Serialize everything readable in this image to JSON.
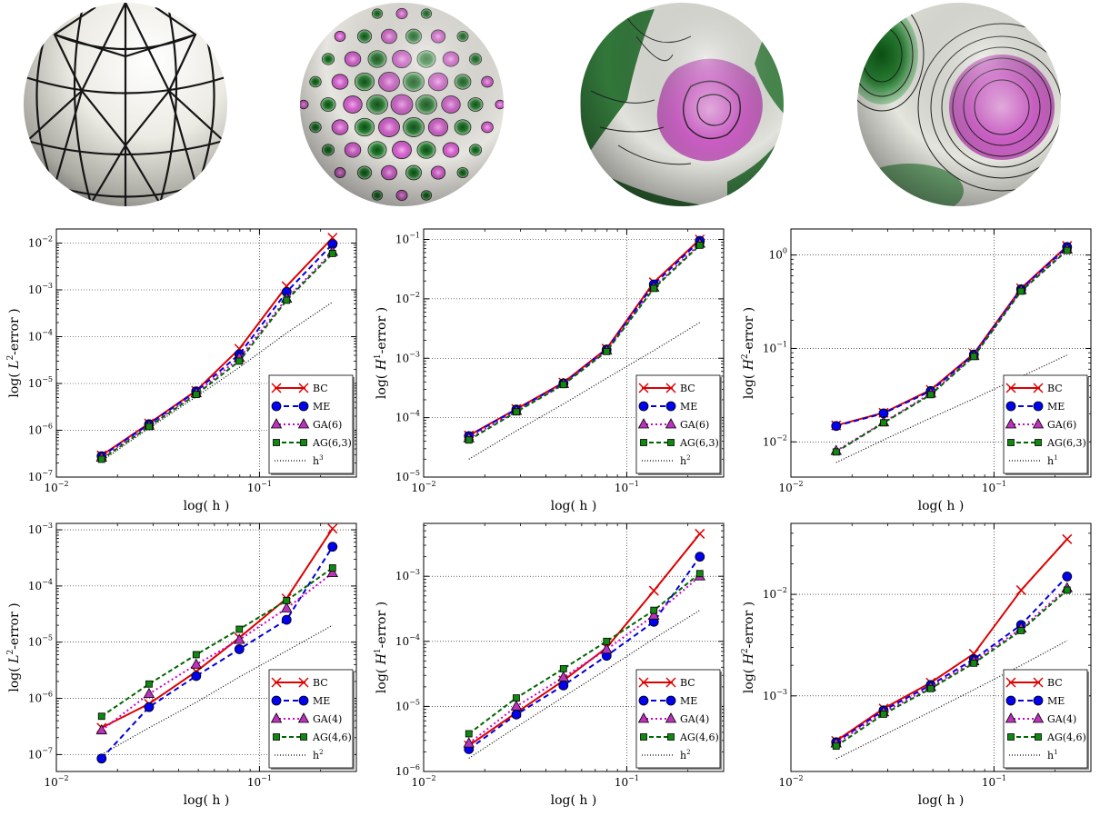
{
  "spheres": [
    {
      "kind": "mesh"
    },
    {
      "kind": "high-frequency"
    },
    {
      "kind": "low-frequency-detail"
    },
    {
      "kind": "smooth"
    }
  ],
  "colors": {
    "BC": "#dd0000",
    "ME": "#0000dd",
    "GA": "#cc00cc",
    "AG": "#006600",
    "ref": "#000000",
    "marker_BC": "#dd0000",
    "marker_ME": "#0000ee",
    "marker_GA": "#bb33bb",
    "marker_AG": "#118811"
  },
  "chart_data": [
    {
      "type": "line",
      "xlabel": "log( h )",
      "ylabel_pre": "log( ",
      "ylabel_norm": "L",
      "ylabel_sup": "2",
      "ylabel_post": "-error )",
      "xlim": [
        0.01,
        0.3
      ],
      "ylim": [
        1e-07,
        0.02
      ],
      "xticks": [
        {
          "v": 0.01,
          "base": "10",
          "exp": "−2"
        },
        {
          "v": 0.1,
          "base": "10",
          "exp": "−1"
        }
      ],
      "yticks": [
        {
          "v": 1e-07,
          "base": "10",
          "exp": "−7"
        },
        {
          "v": 1e-06,
          "base": "10",
          "exp": "−6"
        },
        {
          "v": 1e-05,
          "base": "10",
          "exp": "−5"
        },
        {
          "v": 0.0001,
          "base": "10",
          "exp": "−4"
        },
        {
          "v": 0.001,
          "base": "10",
          "exp": "−3"
        },
        {
          "v": 0.01,
          "base": "10",
          "exp": "−2"
        }
      ],
      "grid": true,
      "legend": "bottom-right",
      "x": [
        0.0167,
        0.0286,
        0.0488,
        0.0796,
        0.136,
        0.229
      ],
      "series": [
        {
          "name": "BC",
          "key": "BC",
          "values": [
            2.9e-07,
            1.4e-06,
            7e-06,
            5.5e-05,
            0.0012,
            0.013
          ]
        },
        {
          "name": "ME",
          "key": "ME",
          "values": [
            2.8e-07,
            1.35e-06,
            6.8e-06,
            4.2e-05,
            0.0009,
            0.0095
          ]
        },
        {
          "name": "GA(6)",
          "key": "GA",
          "values": [
            2.6e-07,
            1.25e-06,
            6.2e-06,
            3.5e-05,
            0.00065,
            0.0065
          ]
        },
        {
          "name": "AG(6,3)",
          "key": "AG",
          "values": [
            2.4e-07,
            1.2e-06,
            5.8e-06,
            3e-05,
            0.0006,
            0.006
          ]
        }
      ],
      "reference": {
        "name": "h",
        "sup": "3",
        "values": [
          2.2e-07,
          1.1e-06,
          5.2e-06,
          2.2e-05,
          0.00012,
          0.00055
        ]
      }
    },
    {
      "type": "line",
      "xlabel": "log( h )",
      "ylabel_pre": "log( ",
      "ylabel_norm": "H",
      "ylabel_sup": "1",
      "ylabel_post": "-error )",
      "xlim": [
        0.01,
        0.3
      ],
      "ylim": [
        1e-05,
        0.15
      ],
      "xticks": [
        {
          "v": 0.01,
          "base": "10",
          "exp": "−2"
        },
        {
          "v": 0.1,
          "base": "10",
          "exp": "−1"
        }
      ],
      "yticks": [
        {
          "v": 1e-05,
          "base": "10",
          "exp": "−5"
        },
        {
          "v": 0.0001,
          "base": "10",
          "exp": "−4"
        },
        {
          "v": 0.001,
          "base": "10",
          "exp": "−3"
        },
        {
          "v": 0.01,
          "base": "10",
          "exp": "−2"
        },
        {
          "v": 0.1,
          "base": "10",
          "exp": "−1"
        }
      ],
      "grid": true,
      "legend": "bottom-right",
      "x": [
        0.0167,
        0.0286,
        0.0488,
        0.0796,
        0.136,
        0.229
      ],
      "series": [
        {
          "name": "BC",
          "key": "BC",
          "values": [
            5e-05,
            0.00014,
            0.00039,
            0.00145,
            0.019,
            0.1
          ]
        },
        {
          "name": "ME",
          "key": "ME",
          "values": [
            4.9e-05,
            0.000137,
            0.00038,
            0.0014,
            0.0175,
            0.095
          ]
        },
        {
          "name": "GA(6)",
          "key": "GA",
          "values": [
            4.5e-05,
            0.00013,
            0.00037,
            0.00135,
            0.0155,
            0.085
          ]
        },
        {
          "name": "AG(6,3)",
          "key": "AG",
          "values": [
            4.2e-05,
            0.000125,
            0.00036,
            0.0013,
            0.015,
            0.08
          ]
        }
      ],
      "reference": {
        "name": "h",
        "sup": "2",
        "values": [
          2e-05,
          6e-05,
          0.00017,
          0.00046,
          0.00135,
          0.004
        ]
      }
    },
    {
      "type": "line",
      "xlabel": "log( h )",
      "ylabel_pre": "log( ",
      "ylabel_norm": "H",
      "ylabel_sup": "2",
      "ylabel_post": "-error )",
      "xlim": [
        0.01,
        0.3
      ],
      "ylim": [
        0.0042,
        1.9
      ],
      "xticks": [
        {
          "v": 0.01,
          "base": "10",
          "exp": "−2"
        },
        {
          "v": 0.1,
          "base": "10",
          "exp": "−1"
        }
      ],
      "yticks": [
        {
          "v": 0.01,
          "base": "10",
          "exp": "−2"
        },
        {
          "v": 0.1,
          "base": "10",
          "exp": "−1"
        },
        {
          "v": 1,
          "base": "10",
          "exp": "0"
        }
      ],
      "grid": true,
      "legend": "bottom-right",
      "x": [
        0.0167,
        0.0286,
        0.0488,
        0.0796,
        0.136,
        0.229
      ],
      "series": [
        {
          "name": "BC",
          "key": "BC",
          "values": [
            0.015,
            0.0205,
            0.036,
            0.088,
            0.44,
            1.25
          ]
        },
        {
          "name": "ME",
          "key": "ME",
          "values": [
            0.0148,
            0.0202,
            0.035,
            0.086,
            0.43,
            1.22
          ]
        },
        {
          "name": "GA(6)",
          "key": "GA",
          "values": [
            0.008,
            0.0162,
            0.033,
            0.083,
            0.42,
            1.15
          ]
        },
        {
          "name": "AG(6,3)",
          "key": "AG",
          "values": [
            0.0078,
            0.016,
            0.032,
            0.082,
            0.41,
            1.12
          ]
        }
      ],
      "reference": {
        "name": "h",
        "sup": "1",
        "values": [
          0.006,
          0.0105,
          0.018,
          0.029,
          0.05,
          0.085
        ]
      }
    },
    {
      "type": "line",
      "xlabel": "log( h )",
      "ylabel_pre": "log( ",
      "ylabel_norm": "L",
      "ylabel_sup": "2",
      "ylabel_post": "-error )",
      "xlim": [
        0.01,
        0.3
      ],
      "ylim": [
        5e-08,
        0.0013
      ],
      "xticks": [
        {
          "v": 0.01,
          "base": "10",
          "exp": "−2"
        },
        {
          "v": 0.1,
          "base": "10",
          "exp": "−1"
        }
      ],
      "yticks": [
        {
          "v": 1e-07,
          "base": "10",
          "exp": "−7"
        },
        {
          "v": 1e-06,
          "base": "10",
          "exp": "−6"
        },
        {
          "v": 1e-05,
          "base": "10",
          "exp": "−5"
        },
        {
          "v": 0.0001,
          "base": "10",
          "exp": "−4"
        },
        {
          "v": 0.001,
          "base": "10",
          "exp": "−3"
        }
      ],
      "grid": true,
      "legend": "bottom-right",
      "x": [
        0.0167,
        0.0286,
        0.0488,
        0.0796,
        0.136,
        0.229
      ],
      "series": [
        {
          "name": "BC",
          "key": "BC",
          "values": [
            3e-07,
            8e-07,
            3e-06,
            1.2e-05,
            6e-05,
            0.00105
          ]
        },
        {
          "name": "ME",
          "key": "ME",
          "values": [
            8.5e-08,
            7e-07,
            2.5e-06,
            7.5e-06,
            2.5e-05,
            0.0005
          ]
        },
        {
          "name": "GA(4)",
          "key": "GA",
          "values": [
            2.7e-07,
            1.2e-06,
            4e-06,
            1.1e-05,
            4e-05,
            0.00017
          ]
        },
        {
          "name": "AG(4,6)",
          "key": "AG",
          "values": [
            4.8e-07,
            1.8e-06,
            6e-06,
            1.7e-05,
            5.5e-05,
            0.00021
          ]
        }
      ],
      "reference": {
        "name": "h",
        "sup": "2",
        "values": [
          1e-07,
          3e-07,
          8.5e-07,
          2.4e-06,
          7e-06,
          2e-05
        ]
      }
    },
    {
      "type": "line",
      "xlabel": "log( h )",
      "ylabel_pre": "log( ",
      "ylabel_norm": "H",
      "ylabel_sup": "1",
      "ylabel_post": "-error )",
      "xlim": [
        0.01,
        0.3
      ],
      "ylim": [
        1e-06,
        0.0065
      ],
      "xticks": [
        {
          "v": 0.01,
          "base": "10",
          "exp": "−2"
        },
        {
          "v": 0.1,
          "base": "10",
          "exp": "−1"
        }
      ],
      "yticks": [
        {
          "v": 1e-06,
          "base": "10",
          "exp": "−6"
        },
        {
          "v": 1e-05,
          "base": "10",
          "exp": "−5"
        },
        {
          "v": 0.0001,
          "base": "10",
          "exp": "−4"
        },
        {
          "v": 0.001,
          "base": "10",
          "exp": "−3"
        }
      ],
      "grid": true,
      "legend": "bottom-right",
      "x": [
        0.0167,
        0.0286,
        0.0488,
        0.0796,
        0.136,
        0.229
      ],
      "series": [
        {
          "name": "BC",
          "key": "BC",
          "values": [
            2.5e-06,
            8e-06,
            2.5e-05,
            8e-05,
            0.0006,
            0.0045
          ]
        },
        {
          "name": "ME",
          "key": "ME",
          "values": [
            2.2e-06,
            7.5e-06,
            2.1e-05,
            6e-05,
            0.0002,
            0.002
          ]
        },
        {
          "name": "GA(4)",
          "key": "GA",
          "values": [
            2.7e-06,
            1e-05,
            2.8e-05,
            7.5e-05,
            0.00025,
            0.001
          ]
        },
        {
          "name": "AG(4,6)",
          "key": "AG",
          "values": [
            3.8e-06,
            1.35e-05,
            3.8e-05,
            0.0001,
            0.0003,
            0.0011
          ]
        }
      ],
      "reference": {
        "name": "h",
        "sup": "2",
        "values": [
          1.6e-06,
          4.8e-06,
          1.4e-05,
          3.7e-05,
          0.00011,
          0.0003
        ]
      }
    },
    {
      "type": "line",
      "xlabel": "log( h )",
      "ylabel_pre": "log( ",
      "ylabel_norm": "H",
      "ylabel_sup": "2",
      "ylabel_post": "-error )",
      "xlim": [
        0.01,
        0.3
      ],
      "ylim": [
        0.00018,
        0.05
      ],
      "xticks": [
        {
          "v": 0.01,
          "base": "10",
          "exp": "−2"
        },
        {
          "v": 0.1,
          "base": "10",
          "exp": "−1"
        }
      ],
      "yticks": [
        {
          "v": 0.001,
          "base": "10",
          "exp": "−3"
        },
        {
          "v": 0.01,
          "base": "10",
          "exp": "−2"
        }
      ],
      "grid": true,
      "legend": "bottom-right",
      "x": [
        0.0167,
        0.0286,
        0.0488,
        0.0796,
        0.136,
        0.229
      ],
      "series": [
        {
          "name": "BC",
          "key": "BC",
          "values": [
            0.00036,
            0.00075,
            0.00135,
            0.0026,
            0.011,
            0.035
          ]
        },
        {
          "name": "ME",
          "key": "ME",
          "values": [
            0.00035,
            0.00072,
            0.00128,
            0.0023,
            0.005,
            0.015
          ]
        },
        {
          "name": "GA(4)",
          "key": "GA",
          "values": [
            0.00034,
            0.00069,
            0.00122,
            0.0022,
            0.0046,
            0.0115
          ]
        },
        {
          "name": "AG(4,6)",
          "key": "AG",
          "values": [
            0.00032,
            0.00066,
            0.00118,
            0.0021,
            0.0044,
            0.011
          ]
        }
      ],
      "reference": {
        "name": "h",
        "sup": "1",
        "values": [
          0.00024,
          0.00041,
          0.0007,
          0.00115,
          0.002,
          0.0035
        ]
      }
    }
  ]
}
